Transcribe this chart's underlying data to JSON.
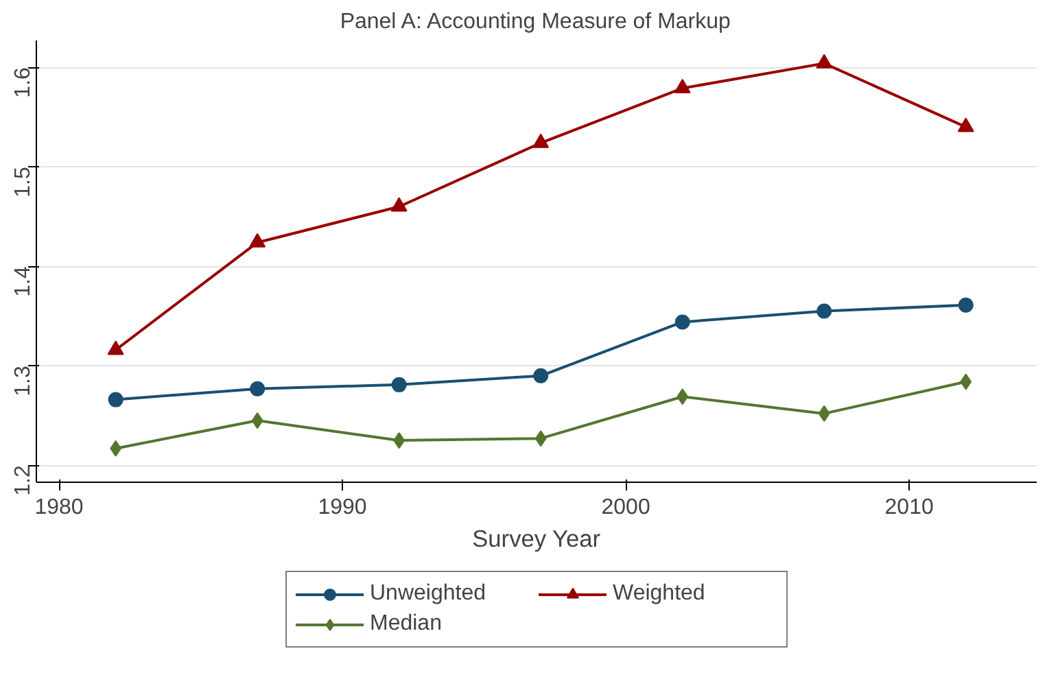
{
  "chart_data": {
    "type": "line",
    "title": "Panel A: Accounting Measure of Markup",
    "xlabel": "Survey Year",
    "x": [
      1982,
      1987,
      1992,
      1997,
      2002,
      2007,
      2012
    ],
    "series": [
      {
        "name": "Unweighted",
        "color": "#1a4f72",
        "marker": "circle",
        "values": [
          1.266,
          1.277,
          1.281,
          1.29,
          1.344,
          1.355,
          1.361
        ]
      },
      {
        "name": "Weighted",
        "color": "#990000",
        "marker": "triangle",
        "values": [
          1.316,
          1.424,
          1.46,
          1.524,
          1.579,
          1.604,
          1.54
        ]
      },
      {
        "name": "Median",
        "color": "#55752f",
        "marker": "diamond",
        "values": [
          1.217,
          1.245,
          1.225,
          1.227,
          1.269,
          1.252,
          1.284
        ]
      }
    ],
    "xlim": [
      1979.2,
      2014.5
    ],
    "ylim": [
      1.183,
      1.627
    ],
    "xticks": [
      1980,
      1990,
      2000,
      2010
    ],
    "yticks": [
      1.2,
      1.3,
      1.4,
      1.5,
      1.6
    ],
    "grid": "y",
    "legend": "bottom",
    "line_style": "solid"
  }
}
